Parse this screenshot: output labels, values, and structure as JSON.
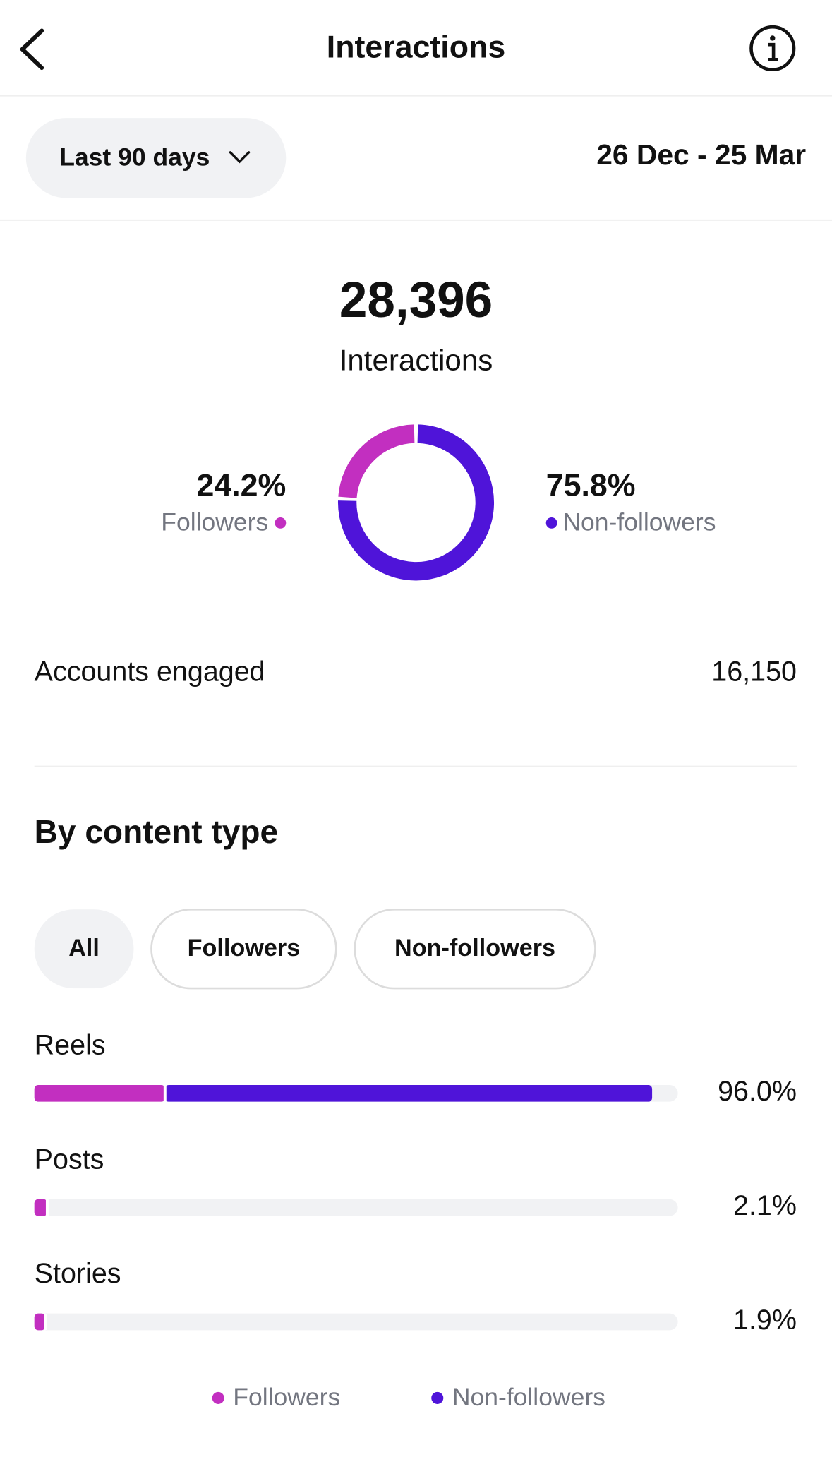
{
  "header": {
    "title": "Interactions"
  },
  "filter": {
    "period": "Last 90 days",
    "date_range": "26 Dec - 25 Mar"
  },
  "summary": {
    "total": "28,396",
    "label": "Interactions"
  },
  "stats": [
    {
      "label": "Accounts engaged",
      "value": "16,150"
    }
  ],
  "tabs": [
    "All",
    "Followers",
    "Non-followers"
  ],
  "chart_data": [
    {
      "type": "donut",
      "categories": [
        "Followers",
        "Non-followers"
      ],
      "values": [
        24.2,
        75.8
      ],
      "value_labels": [
        "24.2%",
        "75.8%"
      ],
      "colors": [
        "#c22fc0",
        "#4f14d9"
      ]
    },
    {
      "type": "stacked-hbar",
      "title": "By content type",
      "categories": [
        "Reels",
        "Posts",
        "Stories"
      ],
      "series": [
        {
          "name": "Followers",
          "color": "#c22fc0",
          "values": [
            20.3,
            2.0,
            1.7
          ]
        },
        {
          "name": "Non-followers",
          "color": "#4f14d9",
          "values": [
            75.7,
            0.1,
            0.2
          ]
        }
      ],
      "totals": {
        "values": [
          96.0,
          2.1,
          1.9
        ],
        "value_labels": [
          "96.0%",
          "2.1%",
          "1.9%"
        ]
      },
      "xlim": [
        0,
        100
      ]
    }
  ]
}
